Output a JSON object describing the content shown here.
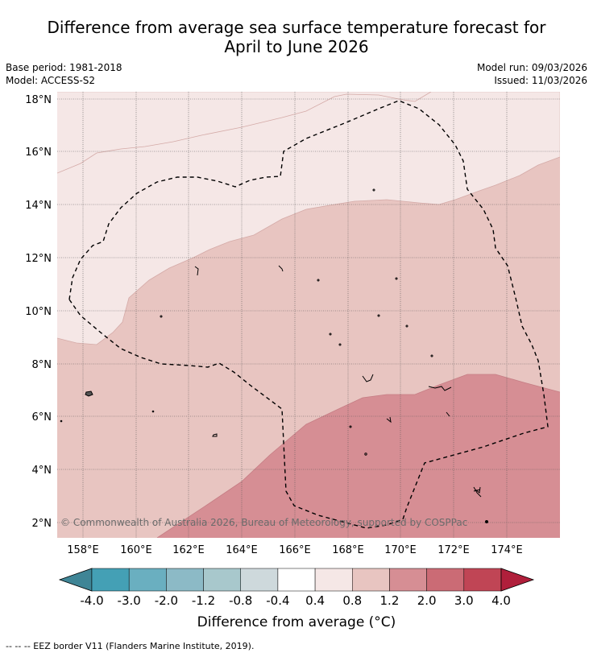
{
  "title_line1": "Difference from average sea surface temperature forecast for",
  "title_line2": "April to June 2026",
  "base_period": "Base period: 1981-2018",
  "model": "Model: ACCESS-S2",
  "model_run": "Model run: 09/03/2026",
  "issued": "Issued: 11/03/2026",
  "copyright": "© Commonwealth of Australia 2026, Bureau of Meteorology, supported by COSPPac",
  "footer": "-- -- -- EEZ border V11 (Flanders Marine Institute, 2019).",
  "colorbar": {
    "label": "Difference from average (°C)",
    "ticks": [
      "-4.0",
      "-3.0",
      "-2.0",
      "-1.2",
      "-0.8",
      "-0.4",
      "0.4",
      "0.8",
      "1.2",
      "2.0",
      "3.0",
      "4.0"
    ],
    "colors": [
      "#44a0b5",
      "#6aafc0",
      "#8cbac6",
      "#a8c8cc",
      "#ced9dc",
      "#ffffff",
      "#f5e7e6",
      "#e8c5c1",
      "#d68e94",
      "#cb6b75",
      "#c04555"
    ],
    "under_color": "#3f8596",
    "over_color": "#b01f3b"
  },
  "map": {
    "lat_labels": [
      "18°N",
      "16°N",
      "14°N",
      "12°N",
      "10°N",
      "8°N",
      "6°N",
      "4°N",
      "2°N"
    ],
    "lon_labels": [
      "158°E",
      "160°E",
      "162°E",
      "164°E",
      "166°E",
      "168°E",
      "170°E",
      "172°E",
      "174°E"
    ],
    "lon_min": 157.0,
    "lon_max": 176.0,
    "lat_min": 1.4,
    "lat_max": 18.3,
    "bands": [
      {
        "range": "0.4 to 0.8",
        "color": "#f5e7e6"
      },
      {
        "range": "0.8 to 1.2",
        "color": "#e8c5c1"
      },
      {
        "range": "1.2 to 2.0",
        "color": "#d68e94"
      }
    ]
  }
}
